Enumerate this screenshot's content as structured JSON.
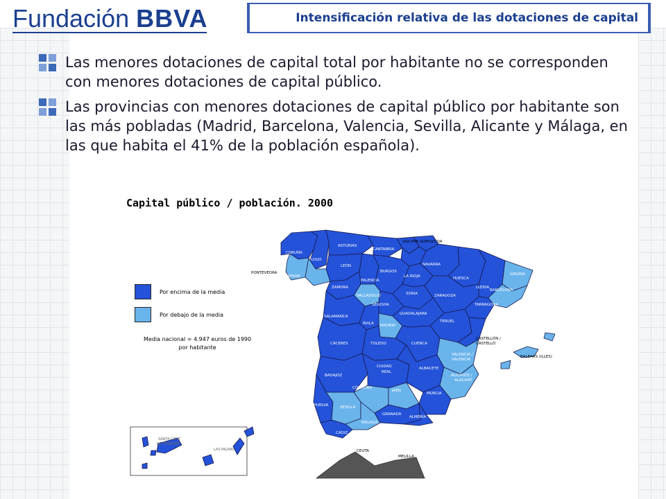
{
  "header": {
    "logo_main": "Fundación",
    "logo_brand": "BBVA",
    "title": "Intensificación relativa de las dotaciones de capital"
  },
  "bullets": [
    {
      "text": "Las menores dotaciones de capital total por habitante no se corresponden con menores dotaciones de capital público."
    },
    {
      "text": "Las provincias con menores dotaciones de capital público por habitante son las más pobladas (Madrid, Barcelona, Valencia, Sevilla, Alicante y Málaga, en las que habita el 41% de la población española)."
    }
  ],
  "map": {
    "title": "Capital público / población. 2000",
    "legend": [
      {
        "label": "Por encima de la media",
        "color": "#1f4fd8"
      },
      {
        "label": "Por debajo de la media",
        "color": "#6fb8ee"
      }
    ],
    "media_line1": "Media nacional = 4.947 euros de 1990",
    "media_line2": "por habitante",
    "colors": {
      "above": "#2452d9",
      "below": "#6ab4ec",
      "border": "#1a1a4a",
      "ceuta_melilla": "#555555"
    },
    "provinces_above": [
      "CORUÑA",
      "LUGO",
      "ASTURIAS",
      "CANTABRIA",
      "VIZCAYA",
      "GUIPUZCOA",
      "NAVARRA",
      "HUESCA",
      "LLEIDA",
      "LEÓN",
      "BURGOS",
      "LA RIOJA",
      "ZAMORA",
      "PALENCIA",
      "SORIA",
      "ZARAGOZA",
      "TARRAGONA",
      "SEGOVIA",
      "SALAMANCA",
      "ÁVILA",
      "GUADALAJARA",
      "TERUEL",
      "CÁCERES",
      "TOLEDO",
      "CUENCA",
      "CASTELLÓN / CASTELLÓ",
      "BADAJOZ",
      "CIUDAD REAL",
      "ALBACETE",
      "MURCIA",
      "HUELVA",
      "JAÉN",
      "GRANADA",
      "ALMERÍA",
      "CÁDIZ",
      "SANTA CRUZ DE TENERIFE",
      "LAS PALMAS"
    ],
    "provinces_below": [
      "PONTEVEDRA",
      "ORENSE",
      "VALLADOLID",
      "MADRID",
      "BARCELONA",
      "GIRONA",
      "VALENCIA / VALENCIA",
      "ALICANTE / ALACANT",
      "CÓRDOBA",
      "SEVILLA",
      "MÁLAGA",
      "BALEARS (ILLES)"
    ],
    "labels": {
      "coruna": "CORUÑA",
      "lugo": "LUGO",
      "asturias": "ASTURIAS",
      "cantabria": "CANTABRIA",
      "vizcaya_guipuzcoa": "VIZCAYA   GUIPUZCOA",
      "navarra": "NAVARRA",
      "huesca": "HUESCA",
      "girona": "GIRONA",
      "pontevedra": "PONTEVEDRA",
      "orense": "ORENSE",
      "leon": "LEÓN",
      "burgos": "BURGOS",
      "larioja": "LA RIOJA",
      "zamora": "ZAMORA",
      "palencia": "PALENCIA",
      "lleida": "LLEIDA",
      "barcelona": "BARCELONA",
      "valladolid": "VALLADOLID",
      "soria": "SORIA",
      "zaragoza": "ZARAGOZA",
      "tarragona": "TARRAGONA",
      "segovia": "SEGOVIA",
      "salamanca": "SALAMANCA",
      "avila": "ÁVILA",
      "guadalajara": "GUADALAJARA",
      "madrid": "MADRID",
      "teruel": "TERUEL",
      "caceres": "CÁCERES",
      "toledo": "TOLEDO",
      "cuenca": "CUENCA",
      "castellon": "CASTELLÓN /",
      "castello": "CASTELLÓ",
      "valencia": "VALENCIA /",
      "valencia2": "VALENCIA",
      "baleares": "BALEARS (ILLES)",
      "ciudadreal1": "CIUDAD",
      "ciudadreal2": "REAL",
      "badajoz": "BADAJOZ",
      "albacete": "ALBACETE",
      "alicante": "ALICANTE /",
      "alacant": "ALACANT",
      "cordoba": "CÓRDOBA",
      "jaen": "JAÉN",
      "murcia": "MURCIA",
      "huelva": "HUELVA",
      "sevilla": "SEVILLA",
      "granada": "GRANADA",
      "almeria": "ALMERÍA",
      "malaga": "MÁLAGA",
      "cadiz": "CÁDIZ",
      "ceuta": "CEUTA",
      "melilla": "MELILLA",
      "tenerife1": "SANTA CRUZ",
      "tenerife2": "DE TENERIFE",
      "laspalmas": "LAS PALMAS"
    }
  }
}
